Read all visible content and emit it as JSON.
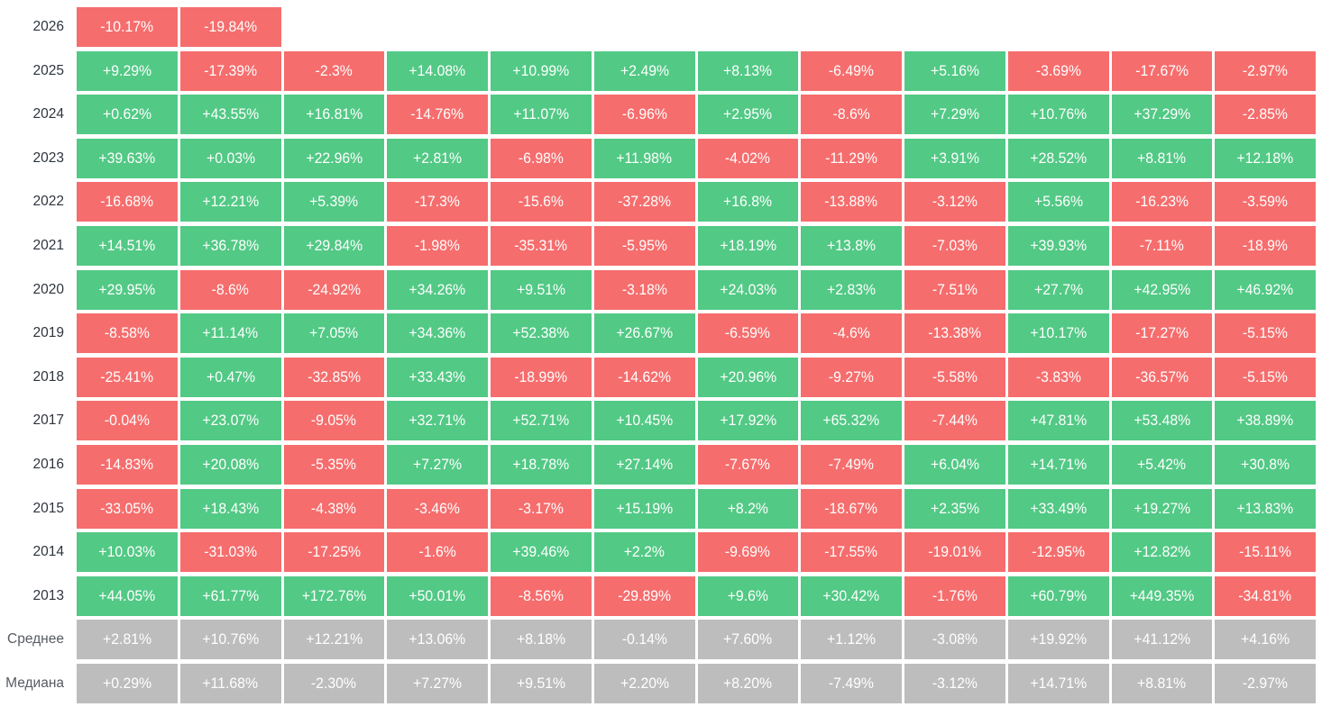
{
  "page": {
    "background": "#ffffff"
  },
  "labels": {
    "average_row": "Среднее",
    "median_row": "Медиана"
  },
  "colors": {
    "positive_cell": "#52c985",
    "negative_cell": "#f66d6d",
    "summary_cell": "#bdbdbd",
    "cell_text": "#ffffff",
    "year_label_text": "#2e343d",
    "summary_label_text": "#565b61"
  },
  "chart_data": {
    "type": "heatmap",
    "description": "Monthly returns heatmap: rows are years (plus average and median summary rows), 12 unlabeled month columns, values in percent. Green = positive, red = negative, gray = summary rows.",
    "unit": "%",
    "columns_count": 12,
    "value_format": {
      "year_rows": "sign + up to 2 decimals with trailing zeros stripped + %",
      "summary_rows": "sign + exactly 2 decimals + %"
    },
    "rows": [
      {
        "label": "2026",
        "kind": "year",
        "values": [
          -10.17,
          -19.84
        ]
      },
      {
        "label": "2025",
        "kind": "year",
        "values": [
          9.29,
          -17.39,
          -2.3,
          14.08,
          10.99,
          2.49,
          8.13,
          -6.49,
          5.16,
          -3.69,
          -17.67,
          -2.97
        ]
      },
      {
        "label": "2024",
        "kind": "year",
        "values": [
          0.62,
          43.55,
          16.81,
          -14.76,
          11.07,
          -6.96,
          2.95,
          -8.6,
          7.29,
          10.76,
          37.29,
          -2.85
        ]
      },
      {
        "label": "2023",
        "kind": "year",
        "values": [
          39.63,
          0.03,
          22.96,
          2.81,
          -6.98,
          11.98,
          -4.02,
          -11.29,
          3.91,
          28.52,
          8.81,
          12.18
        ]
      },
      {
        "label": "2022",
        "kind": "year",
        "values": [
          -16.68,
          12.21,
          5.39,
          -17.3,
          -15.6,
          -37.28,
          16.8,
          -13.88,
          -3.12,
          5.56,
          -16.23,
          -3.59
        ]
      },
      {
        "label": "2021",
        "kind": "year",
        "values": [
          14.51,
          36.78,
          29.84,
          -1.98,
          -35.31,
          -5.95,
          18.19,
          13.8,
          -7.03,
          39.93,
          -7.11,
          -18.9
        ]
      },
      {
        "label": "2020",
        "kind": "year",
        "values": [
          29.95,
          -8.6,
          -24.92,
          34.26,
          9.51,
          -3.18,
          24.03,
          2.83,
          -7.51,
          27.7,
          42.95,
          46.92
        ]
      },
      {
        "label": "2019",
        "kind": "year",
        "values": [
          -8.58,
          11.14,
          7.05,
          34.36,
          52.38,
          26.67,
          -6.59,
          -4.6,
          -13.38,
          10.17,
          -17.27,
          -5.15
        ]
      },
      {
        "label": "2018",
        "kind": "year",
        "values": [
          -25.41,
          0.47,
          -32.85,
          33.43,
          -18.99,
          -14.62,
          20.96,
          -9.27,
          -5.58,
          -3.83,
          -36.57,
          -5.15
        ]
      },
      {
        "label": "2017",
        "kind": "year",
        "values": [
          -0.04,
          23.07,
          -9.05,
          32.71,
          52.71,
          10.45,
          17.92,
          65.32,
          -7.44,
          47.81,
          53.48,
          38.89
        ]
      },
      {
        "label": "2016",
        "kind": "year",
        "values": [
          -14.83,
          20.08,
          -5.35,
          7.27,
          18.78,
          27.14,
          -7.67,
          -7.49,
          6.04,
          14.71,
          5.42,
          30.8
        ]
      },
      {
        "label": "2015",
        "kind": "year",
        "values": [
          -33.05,
          18.43,
          -4.38,
          -3.46,
          -3.17,
          15.19,
          8.2,
          -18.67,
          2.35,
          33.49,
          19.27,
          13.83
        ]
      },
      {
        "label": "2014",
        "kind": "year",
        "values": [
          10.03,
          -31.03,
          -17.25,
          -1.6,
          39.46,
          2.2,
          -9.69,
          -17.55,
          -19.01,
          -12.95,
          12.82,
          -15.11
        ]
      },
      {
        "label": "2013",
        "kind": "year",
        "values": [
          44.05,
          61.77,
          172.76,
          50.01,
          -8.56,
          -29.89,
          9.6,
          30.42,
          -1.76,
          60.79,
          449.35,
          -34.81
        ]
      },
      {
        "label": "Среднее",
        "kind": "average",
        "values": [
          2.81,
          10.76,
          12.21,
          13.06,
          8.18,
          -0.14,
          7.6,
          1.12,
          -3.08,
          19.92,
          41.12,
          4.16
        ]
      },
      {
        "label": "Медиана",
        "kind": "median",
        "values": [
          0.29,
          11.68,
          -2.3,
          7.27,
          9.51,
          2.2,
          8.2,
          -7.49,
          -3.12,
          14.71,
          8.81,
          -2.97
        ]
      }
    ]
  }
}
